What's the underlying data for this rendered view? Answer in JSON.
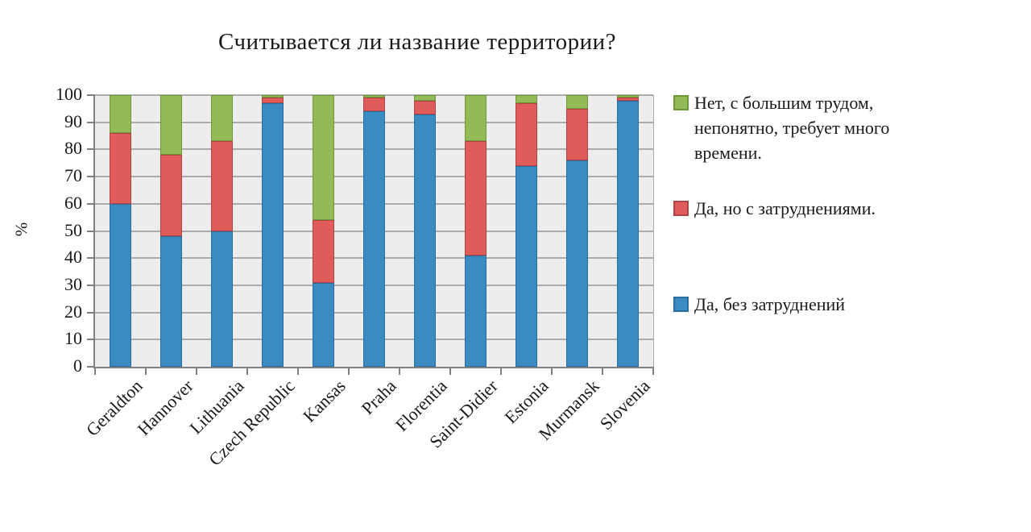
{
  "title": "Считывается ли название территории?",
  "y_axis_unit": "%",
  "chart_data": {
    "type": "bar",
    "stacked": true,
    "title": "Считывается ли название территории?",
    "ylabel": "%",
    "xlabel": "",
    "ylim": [
      0,
      100
    ],
    "ytick_step": 10,
    "grid": true,
    "legend_position": "right",
    "categories": [
      "Geraldton",
      "Hannover",
      "Lithuania",
      "Czech Republic",
      "Kansas",
      "Praha",
      "Florentia",
      "Saint-Didier",
      "Estonia",
      "Murmansk",
      "Slovenia"
    ],
    "series": [
      {
        "name": "Да, без затруднений",
        "color": "#3A8BC2",
        "border": "#2A6E9E",
        "values": [
          60,
          48,
          50,
          97,
          31,
          94,
          93,
          41,
          74,
          76,
          98
        ]
      },
      {
        "name": "Да, но с затруднениями.",
        "color": "#E05C5B",
        "border": "#B04345",
        "values": [
          26,
          30,
          33,
          2,
          23,
          5,
          5,
          42,
          23,
          19,
          1
        ]
      },
      {
        "name": "Нет, с большим трудом, непонятно, требует много времени.",
        "color": "#94BA57",
        "border": "#6F9839",
        "values": [
          14,
          22,
          17,
          1,
          46,
          1,
          2,
          17,
          3,
          5,
          1
        ]
      }
    ]
  },
  "legend": {
    "items": [
      {
        "lines": [
          "Нет, с большим трудом,",
          "непонятно, требует много",
          "времени."
        ],
        "color": "#94BA57",
        "border": "#6F9839"
      },
      {
        "lines": [
          "Да, но с затруднениями."
        ],
        "color": "#E05C5B",
        "border": "#B04345"
      },
      {
        "lines": [
          "Да, без затруднений"
        ],
        "color": "#3A8BC2",
        "border": "#2A6E9E"
      }
    ]
  },
  "colors": {
    "plot_background": "#EDEDED",
    "gridline": "#ABABAB",
    "axis": "#808080",
    "page_background": "#FFFFFF",
    "text": "#1A1A1A"
  }
}
